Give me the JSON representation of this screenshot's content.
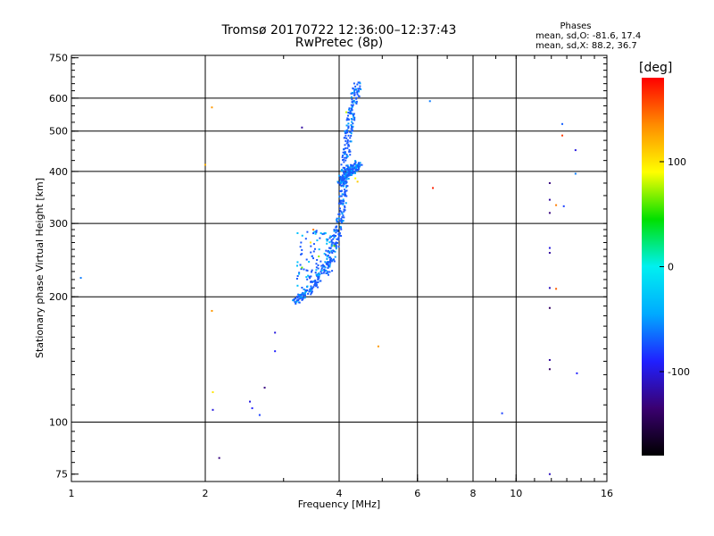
{
  "header": {
    "title_line1": "Tromsø 20170722 12:36:00–12:37:43",
    "title_line2": "RwPretec (8p)",
    "stats_heading": "Phases",
    "stats_o": "mean, sd,O: -81.6, 17.4",
    "stats_x": "mean, sd,X:  88.2, 36.7"
  },
  "chart_data": {
    "type": "scatter",
    "xlabel": "Frequency [MHz]",
    "ylabel": "Stationary phase Virtual Height [km]",
    "x_scale": "log",
    "y_scale": "log",
    "xlim": [
      1,
      16
    ],
    "ylim": [
      72,
      760
    ],
    "x_ticks": [
      {
        "value": 1,
        "label": "1"
      },
      {
        "value": 2,
        "label": "2"
      },
      {
        "value": 4,
        "label": "4"
      },
      {
        "value": 6,
        "label": "6"
      },
      {
        "value": 8,
        "label": "8"
      },
      {
        "value": 10,
        "label": "10"
      },
      {
        "value": 16,
        "label": "16"
      }
    ],
    "x_gridlines": [
      2,
      4,
      6,
      8,
      10
    ],
    "y_ticks": [
      {
        "value": 75,
        "label": "75"
      },
      {
        "value": 100,
        "label": "100"
      },
      {
        "value": 200,
        "label": "200"
      },
      {
        "value": 300,
        "label": "300"
      },
      {
        "value": 400,
        "label": "400"
      },
      {
        "value": 500,
        "label": "500"
      },
      {
        "value": 600,
        "label": "600"
      },
      {
        "value": 750,
        "label": "750"
      }
    ],
    "y_gridlines": [
      100,
      200,
      300,
      400,
      500,
      600
    ],
    "grid": true,
    "colorbar": {
      "label": "[deg]",
      "range": [
        -180,
        180
      ],
      "ticks": [
        {
          "value": 100,
          "label": "100"
        },
        {
          "value": 0,
          "label": "0"
        },
        {
          "value": -100,
          "label": "-100"
        }
      ],
      "placement": "right",
      "colors": [
        "#000000",
        "#3a0070",
        "#2020ff",
        "#00aaff",
        "#00f0f0",
        "#00e000",
        "#ffff00",
        "#ff8c00",
        "#ff0000"
      ]
    },
    "trace_o": {
      "color": "#1a5aff",
      "segments": [
        {
          "f": [
            3.15,
            3.35,
            3.55,
            3.75,
            3.9,
            3.98
          ],
          "h": [
            196,
            205,
            218,
            240,
            270,
            300
          ]
        },
        {
          "f": [
            4.0,
            4.05,
            4.1,
            4.15,
            4.2,
            4.3,
            4.38
          ],
          "h": [
            300,
            340,
            400,
            460,
            520,
            590,
            650
          ]
        },
        {
          "f": [
            4.02,
            4.1,
            4.2,
            4.3,
            4.4
          ],
          "h": [
            380,
            390,
            400,
            410,
            420
          ]
        }
      ],
      "diffuse_cluster": {
        "f": [
          3.2,
          3.9
        ],
        "h": [
          205,
          290
        ]
      }
    },
    "points": [
      {
        "f": 1.05,
        "h": 222,
        "deg": -60
      },
      {
        "f": 2.07,
        "h": 570,
        "deg": 130
      },
      {
        "f": 2.0,
        "h": 415,
        "deg": 120
      },
      {
        "f": 2.07,
        "h": 185,
        "deg": 130
      },
      {
        "f": 2.08,
        "h": 118,
        "deg": 100
      },
      {
        "f": 2.08,
        "h": 107,
        "deg": -100
      },
      {
        "f": 2.15,
        "h": 82,
        "deg": -130
      },
      {
        "f": 2.52,
        "h": 112,
        "deg": -100
      },
      {
        "f": 2.55,
        "h": 108,
        "deg": -90
      },
      {
        "f": 2.65,
        "h": 104,
        "deg": -80
      },
      {
        "f": 2.72,
        "h": 121,
        "deg": -130
      },
      {
        "f": 2.87,
        "h": 164,
        "deg": -100
      },
      {
        "f": 2.87,
        "h": 148,
        "deg": -90
      },
      {
        "f": 3.3,
        "h": 510,
        "deg": -120
      },
      {
        "f": 4.9,
        "h": 152,
        "deg": 130
      },
      {
        "f": 6.4,
        "h": 590,
        "deg": -60
      },
      {
        "f": 6.5,
        "h": 365,
        "deg": 170
      },
      {
        "f": 9.3,
        "h": 105,
        "deg": -80
      },
      {
        "f": 11.9,
        "h": 375,
        "deg": -130
      },
      {
        "f": 11.9,
        "h": 342,
        "deg": -120
      },
      {
        "f": 11.9,
        "h": 318,
        "deg": -130
      },
      {
        "f": 11.9,
        "h": 262,
        "deg": -100
      },
      {
        "f": 11.9,
        "h": 255,
        "deg": -120
      },
      {
        "f": 11.9,
        "h": 210,
        "deg": -110
      },
      {
        "f": 11.9,
        "h": 188,
        "deg": -140
      },
      {
        "f": 11.9,
        "h": 141,
        "deg": -120
      },
      {
        "f": 11.9,
        "h": 134,
        "deg": -140
      },
      {
        "f": 11.9,
        "h": 75,
        "deg": -110
      },
      {
        "f": 12.3,
        "h": 332,
        "deg": 140
      },
      {
        "f": 12.3,
        "h": 209,
        "deg": 150
      },
      {
        "f": 12.7,
        "h": 520,
        "deg": -70
      },
      {
        "f": 12.7,
        "h": 488,
        "deg": 160
      },
      {
        "f": 12.8,
        "h": 330,
        "deg": -80
      },
      {
        "f": 13.6,
        "h": 450,
        "deg": -100
      },
      {
        "f": 13.6,
        "h": 395,
        "deg": -60
      },
      {
        "f": 13.7,
        "h": 131,
        "deg": -90
      },
      {
        "f": 3.5,
        "h": 290,
        "deg": 140
      },
      {
        "f": 3.45,
        "h": 270,
        "deg": 100
      },
      {
        "f": 3.6,
        "h": 250,
        "deg": 70
      },
      {
        "f": 3.3,
        "h": 235,
        "deg": 60
      },
      {
        "f": 4.4,
        "h": 378,
        "deg": 110
      },
      {
        "f": 4.35,
        "h": 385,
        "deg": 90
      },
      {
        "f": 4.15,
        "h": 555,
        "deg": 80
      },
      {
        "f": 3.9,
        "h": 265,
        "deg": 60
      }
    ]
  }
}
